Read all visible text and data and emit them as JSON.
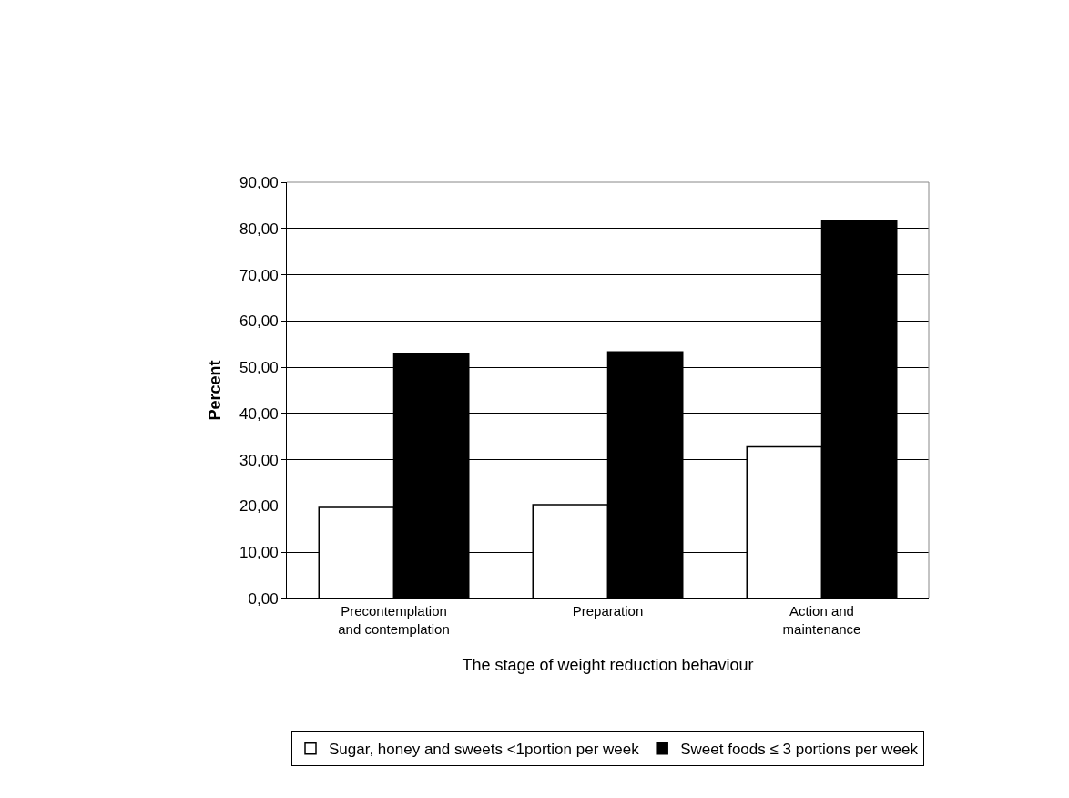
{
  "chart_data": {
    "type": "bar",
    "xlabel": "The stage of weight reduction behaviour",
    "ylabel": "Percent",
    "categories": [
      "Precontemplation and contemplation",
      "Preparation",
      "Action and maintenance"
    ],
    "series": [
      {
        "name": "Sugar, honey and sweets <1portion per week",
        "color": "#ffffff",
        "values": [
          19.7,
          20.3,
          32.8
        ]
      },
      {
        "name": "Sweet foods ≤ 3 portions per week",
        "color": "#000000",
        "values": [
          52.9,
          53.3,
          81.8
        ]
      }
    ],
    "ylim": [
      0,
      90
    ],
    "yticks": [
      {
        "value": 0,
        "label": "0,00"
      },
      {
        "value": 10,
        "label": "10,00"
      },
      {
        "value": 20,
        "label": "20,00"
      },
      {
        "value": 30,
        "label": "30,00"
      },
      {
        "value": 40,
        "label": "40,00"
      },
      {
        "value": 50,
        "label": "50,00"
      },
      {
        "value": 60,
        "label": "60,00"
      },
      {
        "value": 70,
        "label": "70,00"
      },
      {
        "value": 80,
        "label": "80,00"
      },
      {
        "value": 90,
        "label": "90,00"
      }
    ],
    "grid": "y",
    "legend": "bottom"
  }
}
